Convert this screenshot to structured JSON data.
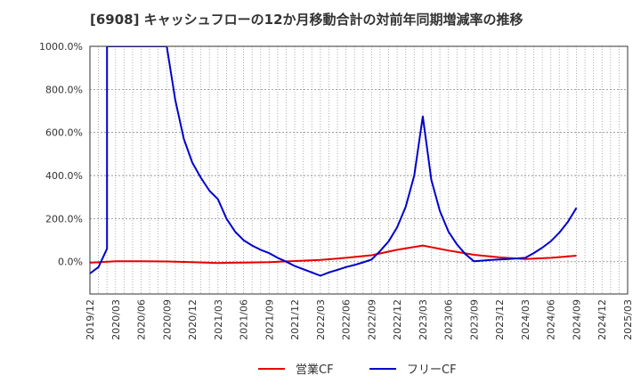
{
  "chart_data": {
    "type": "line",
    "title": "[6908]  キャッシュフローの12か月移動合計の対前年同期増減率の推移",
    "y_tick_labels": [
      "1000.0%",
      "800.0%",
      "600.0%",
      "400.0%",
      "200.0%",
      "0.0%"
    ],
    "y_tick_values": [
      1000,
      800,
      600,
      400,
      200,
      0
    ],
    "ylim": [
      -150,
      1000
    ],
    "x_start": "2019/12",
    "x_end": "2025/03",
    "x_tick_labels": [
      "2019/12",
      "2020/03",
      "2020/06",
      "2020/09",
      "2020/12",
      "2021/03",
      "2021/06",
      "2021/09",
      "2021/12",
      "2022/03",
      "2022/06",
      "2022/09",
      "2022/12",
      "2023/03",
      "2023/06",
      "2023/09",
      "2023/12",
      "2024/03",
      "2024/06",
      "2024/09",
      "2024/12",
      "2025/03"
    ],
    "grid": true,
    "legend_position": "bottom-center",
    "series": [
      {
        "name": "営業CF",
        "color": "#e60000",
        "points": [
          [
            "2019/12",
            -5
          ],
          [
            "2020/03",
            2
          ],
          [
            "2020/06",
            2
          ],
          [
            "2020/09",
            1
          ],
          [
            "2020/12",
            -2
          ],
          [
            "2021/03",
            -6
          ],
          [
            "2021/06",
            -4
          ],
          [
            "2021/09",
            -2
          ],
          [
            "2021/12",
            3
          ],
          [
            "2022/03",
            8
          ],
          [
            "2022/06",
            18
          ],
          [
            "2022/09",
            30
          ],
          [
            "2022/12",
            55
          ],
          [
            "2023/03",
            75
          ],
          [
            "2023/06",
            52
          ],
          [
            "2023/09",
            32
          ],
          [
            "2023/12",
            20
          ],
          [
            "2024/03",
            12
          ],
          [
            "2024/06",
            18
          ],
          [
            "2024/09",
            28
          ]
        ]
      },
      {
        "name": "フリーCF",
        "color": "#0000cc",
        "points": [
          [
            "2019/12",
            -55
          ],
          [
            "2020/01",
            -25
          ],
          [
            "2020/02",
            60
          ],
          [
            "2020/02",
            1000
          ],
          [
            "2020/09",
            1000
          ],
          [
            "2020/10",
            750
          ],
          [
            "2020/11",
            570
          ],
          [
            "2020/12",
            460
          ],
          [
            "2021/01",
            390
          ],
          [
            "2021/02",
            330
          ],
          [
            "2021/03",
            290
          ],
          [
            "2021/04",
            200
          ],
          [
            "2021/05",
            140
          ],
          [
            "2021/06",
            100
          ],
          [
            "2021/07",
            75
          ],
          [
            "2021/08",
            55
          ],
          [
            "2021/09",
            40
          ],
          [
            "2021/10",
            18
          ],
          [
            "2021/11",
            0
          ],
          [
            "2021/12",
            -20
          ],
          [
            "2022/01",
            -35
          ],
          [
            "2022/02",
            -50
          ],
          [
            "2022/03",
            -65
          ],
          [
            "2022/04",
            -50
          ],
          [
            "2022/05",
            -38
          ],
          [
            "2022/06",
            -25
          ],
          [
            "2022/07",
            -15
          ],
          [
            "2022/08",
            -3
          ],
          [
            "2022/09",
            10
          ],
          [
            "2022/10",
            50
          ],
          [
            "2022/11",
            95
          ],
          [
            "2022/12",
            160
          ],
          [
            "2023/01",
            255
          ],
          [
            "2023/02",
            400
          ],
          [
            "2023/03",
            675
          ],
          [
            "2023/04",
            380
          ],
          [
            "2023/05",
            235
          ],
          [
            "2023/06",
            140
          ],
          [
            "2023/07",
            80
          ],
          [
            "2023/08",
            35
          ],
          [
            "2023/09",
            2
          ],
          [
            "2023/10",
            5
          ],
          [
            "2023/11",
            8
          ],
          [
            "2023/12",
            10
          ],
          [
            "2024/01",
            12
          ],
          [
            "2024/02",
            15
          ],
          [
            "2024/03",
            18
          ],
          [
            "2024/04",
            40
          ],
          [
            "2024/05",
            65
          ],
          [
            "2024/06",
            95
          ],
          [
            "2024/07",
            135
          ],
          [
            "2024/08",
            185
          ],
          [
            "2024/09",
            250
          ]
        ]
      }
    ]
  }
}
